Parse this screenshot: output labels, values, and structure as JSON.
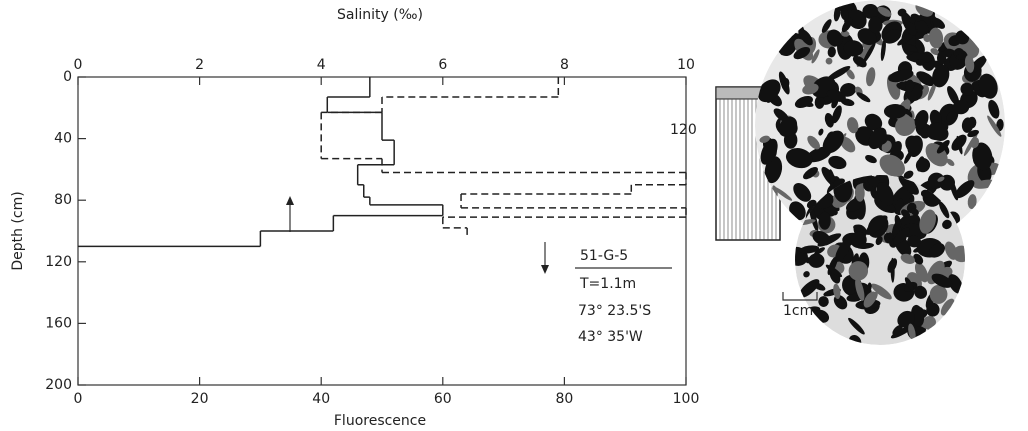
{
  "chart_data": {
    "type": "step-profile",
    "title": "Salinity (‰)",
    "x_label": "Fluorescence",
    "y_label": "Depth (cm)",
    "xlim": [
      0,
      100
    ],
    "xticks": [
      0,
      20,
      40,
      60,
      80,
      100
    ],
    "x2lim": [
      0,
      10
    ],
    "x2ticks": [
      0,
      2,
      4,
      6,
      8,
      10
    ],
    "ylim": [
      0,
      200
    ],
    "yticks": [
      0,
      40,
      80,
      120,
      160,
      200
    ],
    "series": [
      {
        "axis": "x",
        "color": "#222",
        "dashed": false,
        "depth": [
          0,
          13,
          23,
          41,
          57,
          70,
          78,
          83,
          90,
          100,
          110
        ],
        "values": [
          48,
          41,
          50,
          52,
          46,
          47,
          48,
          60,
          42,
          30
        ]
      },
      {
        "axis": "x2",
        "color": "#222",
        "dashed": true,
        "depth": [
          0,
          13,
          23,
          53,
          62,
          70,
          76,
          85,
          91,
          98,
          103
        ],
        "values": [
          7.9,
          5.0,
          4.0,
          5.0,
          10,
          9.1,
          6.3,
          10,
          6.0,
          6.4
        ]
      }
    ],
    "annotations": [
      "120",
      "51-G-5",
      "T=1.1m",
      "73° 23.5'S",
      "43° 35'W",
      "1cm"
    ]
  }
}
